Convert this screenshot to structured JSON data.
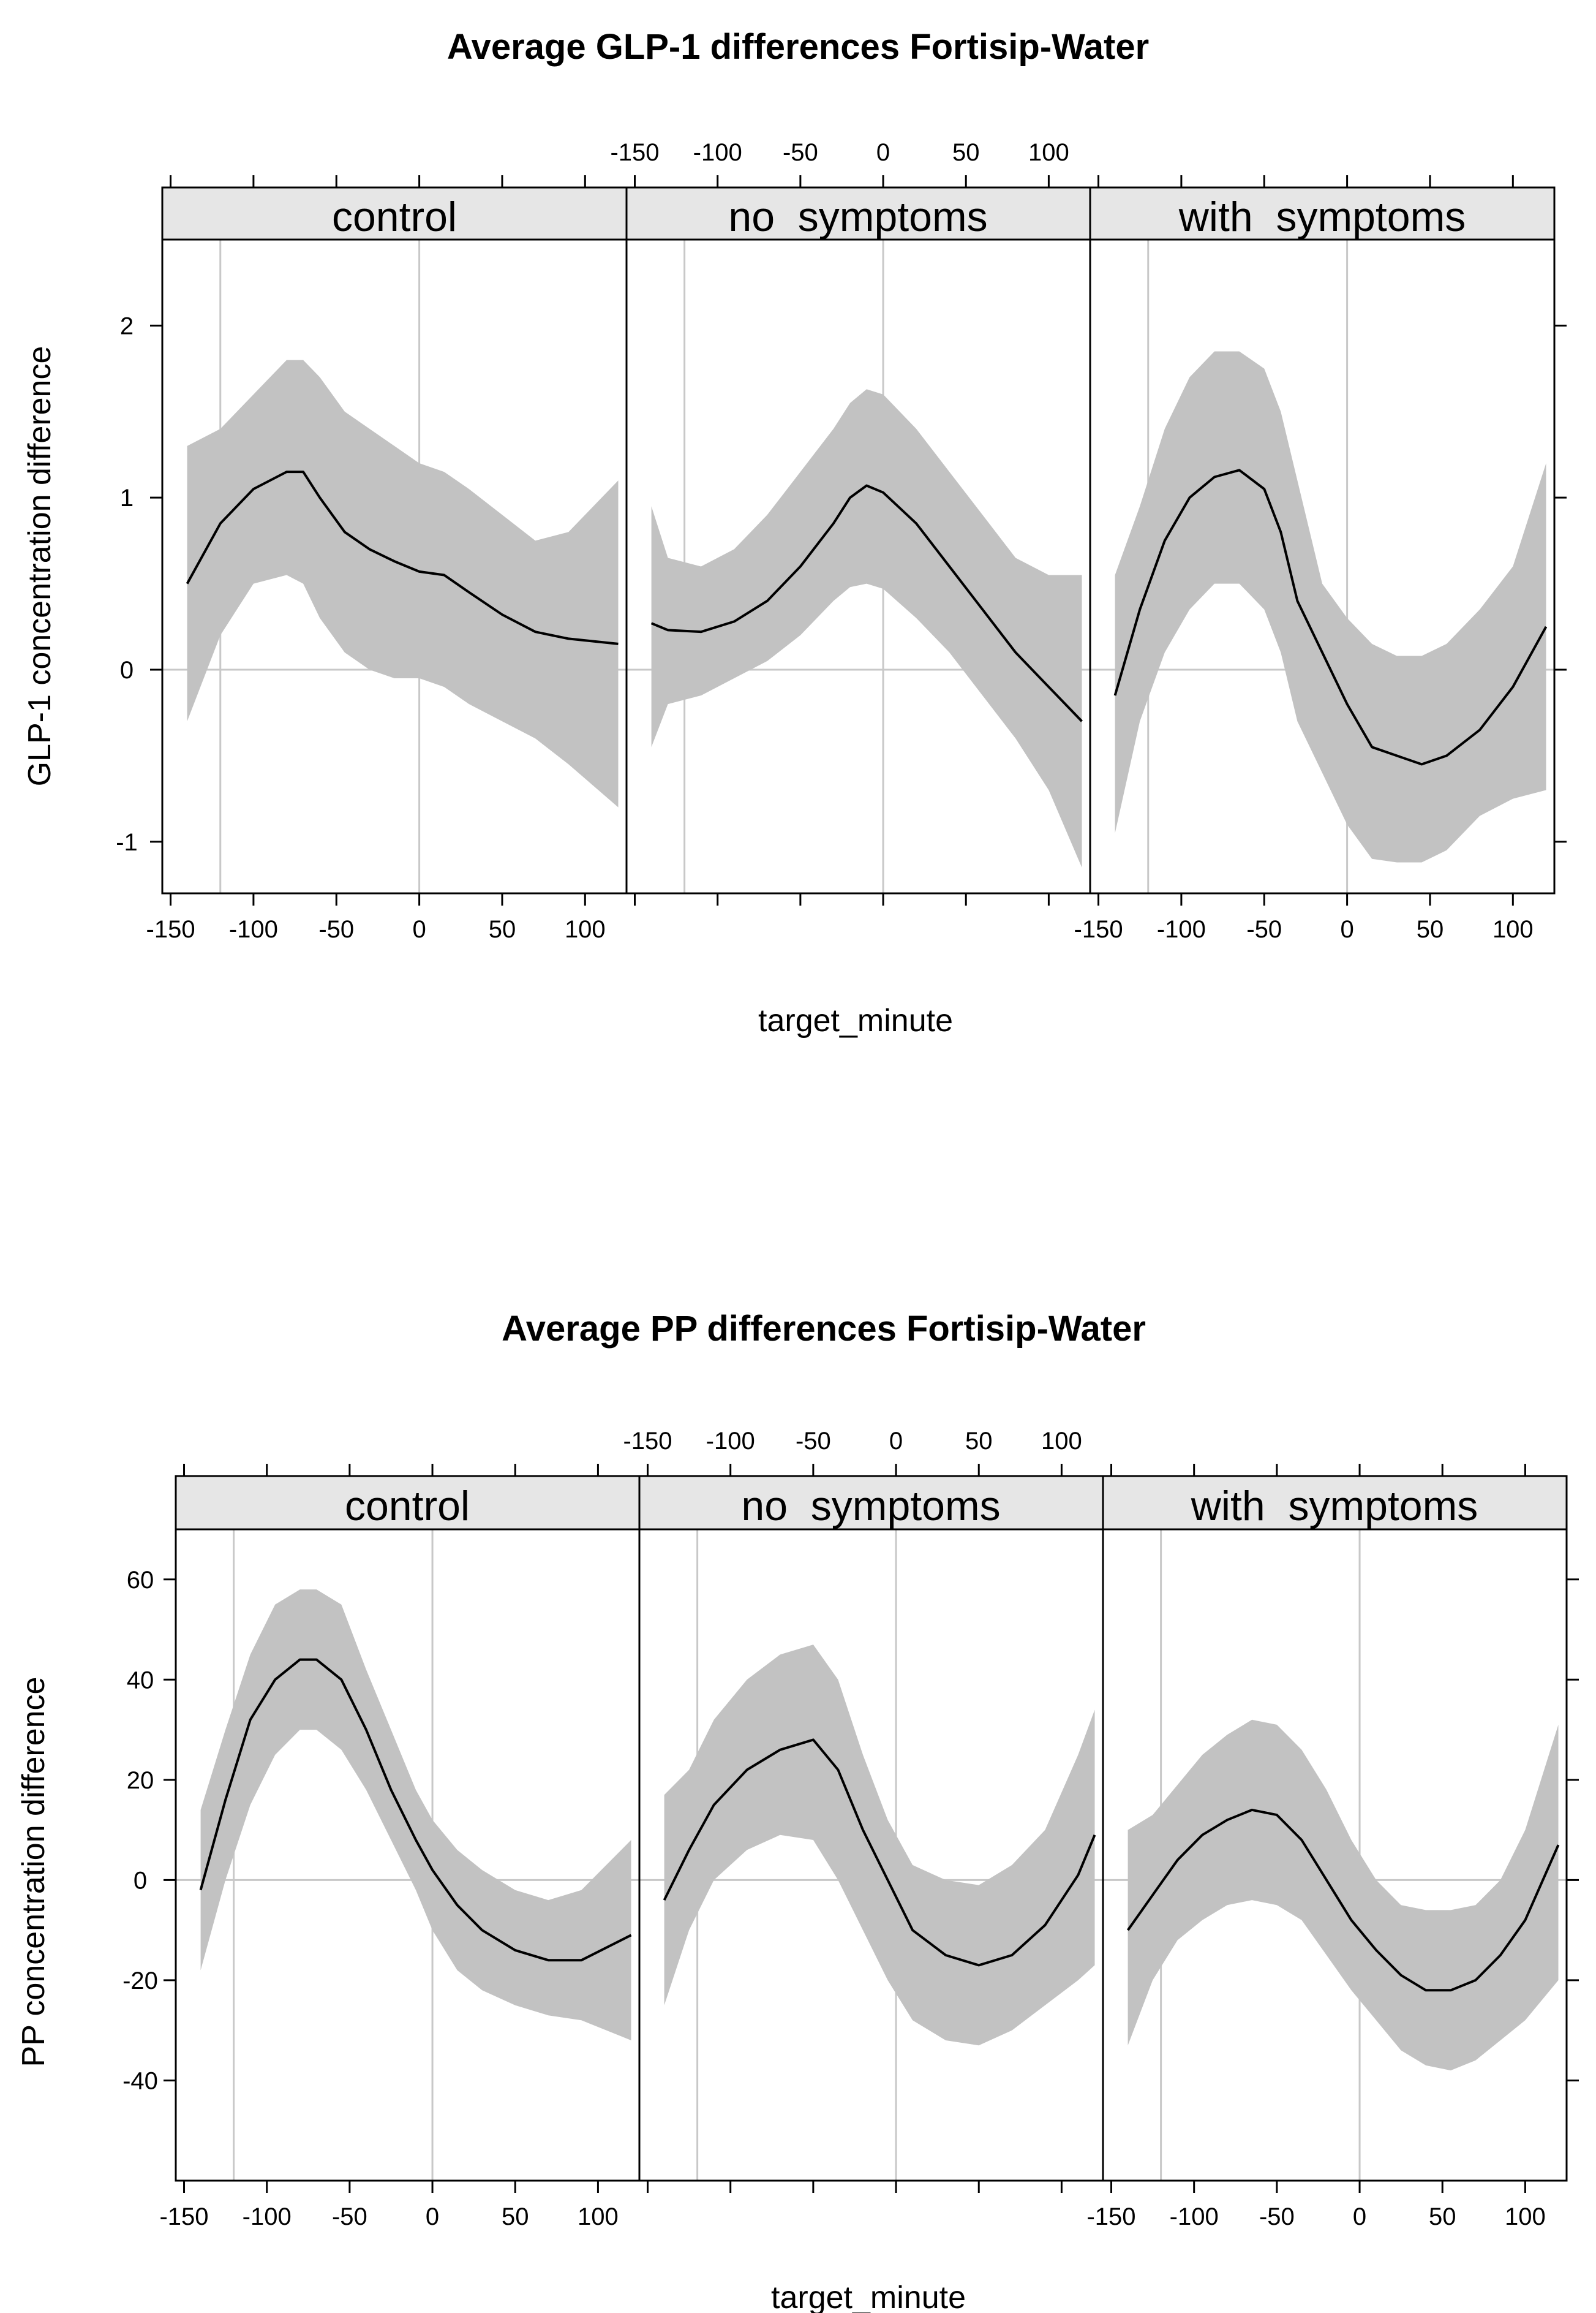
{
  "chart_data": [
    {
      "type": "line",
      "title": "Average GLP-1 differences Fortisip-Water",
      "xlabel": "target_minute",
      "ylabel": "GLP-1 concentration difference",
      "xlim": [
        -155,
        125
      ],
      "ylim": [
        -1.3,
        2.5
      ],
      "xticks": [
        -150,
        -100,
        -50,
        0,
        50,
        100
      ],
      "xtick_labels": [
        "-150",
        "-100",
        "-50",
        "0",
        "50",
        "100"
      ],
      "yticks": [
        -1,
        0,
        1,
        2
      ],
      "ytick_labels": [
        "-1",
        "0",
        "1",
        "2"
      ],
      "reference_lines": {
        "x": [
          -120,
          0
        ],
        "y": [
          0
        ]
      },
      "panels": [
        {
          "name": "control",
          "x": [
            -140,
            -120,
            -100,
            -80,
            -70,
            -60,
            -45,
            -30,
            -15,
            0,
            15,
            30,
            50,
            70,
            90,
            120
          ],
          "y": [
            0.5,
            0.85,
            1.05,
            1.15,
            1.15,
            1.0,
            0.8,
            0.7,
            0.63,
            0.57,
            0.55,
            0.45,
            0.32,
            0.22,
            0.18,
            0.15
          ],
          "lower": [
            -0.3,
            0.2,
            0.5,
            0.55,
            0.5,
            0.3,
            0.1,
            0.0,
            -0.05,
            -0.05,
            -0.1,
            -0.2,
            -0.3,
            -0.4,
            -0.55,
            -0.8
          ],
          "upper": [
            1.3,
            1.4,
            1.6,
            1.8,
            1.8,
            1.7,
            1.5,
            1.4,
            1.3,
            1.2,
            1.15,
            1.05,
            0.9,
            0.75,
            0.8,
            1.1
          ]
        },
        {
          "name": "no  symptoms",
          "x": [
            -140,
            -130,
            -110,
            -90,
            -70,
            -50,
            -30,
            -20,
            -10,
            0,
            20,
            40,
            60,
            80,
            100,
            120
          ],
          "y": [
            0.27,
            0.23,
            0.22,
            0.28,
            0.4,
            0.6,
            0.85,
            1.0,
            1.07,
            1.03,
            0.85,
            0.6,
            0.35,
            0.1,
            -0.1,
            -0.3
          ],
          "lower": [
            -0.45,
            -0.2,
            -0.15,
            -0.05,
            0.05,
            0.2,
            0.4,
            0.48,
            0.5,
            0.47,
            0.3,
            0.1,
            -0.15,
            -0.4,
            -0.7,
            -1.15
          ],
          "upper": [
            0.95,
            0.65,
            0.6,
            0.7,
            0.9,
            1.15,
            1.4,
            1.55,
            1.63,
            1.6,
            1.4,
            1.15,
            0.9,
            0.65,
            0.55,
            0.55
          ]
        },
        {
          "name": "with  symptoms",
          "x": [
            -140,
            -125,
            -110,
            -95,
            -80,
            -65,
            -50,
            -40,
            -30,
            -15,
            0,
            15,
            30,
            45,
            60,
            80,
            100,
            120
          ],
          "y": [
            -0.15,
            0.35,
            0.75,
            1.0,
            1.12,
            1.16,
            1.05,
            0.8,
            0.4,
            0.1,
            -0.2,
            -0.45,
            -0.5,
            -0.55,
            -0.5,
            -0.35,
            -0.1,
            0.25
          ],
          "lower": [
            -0.95,
            -0.3,
            0.1,
            0.35,
            0.5,
            0.5,
            0.35,
            0.1,
            -0.3,
            -0.6,
            -0.9,
            -1.1,
            -1.12,
            -1.12,
            -1.05,
            -0.85,
            -0.75,
            -0.7
          ],
          "upper": [
            0.55,
            0.95,
            1.4,
            1.7,
            1.85,
            1.85,
            1.75,
            1.5,
            1.1,
            0.5,
            0.3,
            0.15,
            0.08,
            0.08,
            0.15,
            0.35,
            0.6,
            1.2
          ]
        }
      ]
    },
    {
      "type": "line",
      "title": "Average PP differences Fortisip-Water",
      "xlabel": "target_minute",
      "ylabel": "PP concentration difference",
      "xlim": [
        -155,
        125
      ],
      "ylim": [
        -60,
        70
      ],
      "xticks": [
        -150,
        -100,
        -50,
        0,
        50,
        100
      ],
      "xtick_labels": [
        "-150",
        "-100",
        "-50",
        "0",
        "50",
        "100"
      ],
      "yticks": [
        -40,
        -20,
        0,
        20,
        40,
        60
      ],
      "ytick_labels": [
        "-40",
        "-20",
        "0",
        "20",
        "40",
        "60"
      ],
      "reference_lines": {
        "x": [
          -120,
          0
        ],
        "y": [
          0
        ]
      },
      "panels": [
        {
          "name": "control",
          "x": [
            -140,
            -125,
            -110,
            -95,
            -80,
            -70,
            -55,
            -40,
            -25,
            -10,
            0,
            15,
            30,
            50,
            70,
            90,
            120
          ],
          "y": [
            -2,
            16,
            32,
            40,
            44,
            44,
            40,
            30,
            18,
            8,
            2,
            -5,
            -10,
            -14,
            -16,
            -16,
            -11
          ],
          "lower": [
            -18,
            0,
            15,
            25,
            30,
            30,
            26,
            18,
            8,
            -2,
            -10,
            -18,
            -22,
            -25,
            -27,
            -28,
            -32
          ],
          "upper": [
            14,
            30,
            45,
            55,
            58,
            58,
            55,
            42,
            30,
            18,
            12,
            6,
            2,
            -2,
            -4,
            -2,
            8
          ]
        },
        {
          "name": "no  symptoms",
          "x": [
            -140,
            -125,
            -110,
            -90,
            -70,
            -50,
            -35,
            -20,
            -5,
            10,
            30,
            50,
            70,
            90,
            110,
            120
          ],
          "y": [
            -4,
            6,
            15,
            22,
            26,
            28,
            22,
            10,
            0,
            -10,
            -15,
            -17,
            -15,
            -9,
            1,
            9
          ],
          "lower": [
            -25,
            -10,
            0,
            6,
            9,
            8,
            0,
            -10,
            -20,
            -28,
            -32,
            -33,
            -30,
            -25,
            -20,
            -17
          ],
          "upper": [
            17,
            22,
            32,
            40,
            45,
            47,
            40,
            25,
            12,
            3,
            0,
            -1,
            3,
            10,
            25,
            34
          ]
        },
        {
          "name": "with  symptoms",
          "x": [
            -140,
            -125,
            -110,
            -95,
            -80,
            -65,
            -50,
            -35,
            -20,
            -5,
            10,
            25,
            40,
            55,
            70,
            85,
            100,
            120
          ],
          "y": [
            -10,
            -3,
            4,
            9,
            12,
            14,
            13,
            8,
            0,
            -8,
            -14,
            -19,
            -22,
            -22,
            -20,
            -15,
            -8,
            7
          ],
          "lower": [
            -33,
            -20,
            -12,
            -8,
            -5,
            -4,
            -5,
            -8,
            -15,
            -22,
            -28,
            -34,
            -37,
            -38,
            -36,
            -32,
            -28,
            -20
          ],
          "upper": [
            10,
            13,
            19,
            25,
            29,
            32,
            31,
            26,
            18,
            8,
            0,
            -5,
            -6,
            -6,
            -5,
            0,
            10,
            31
          ]
        }
      ]
    }
  ]
}
